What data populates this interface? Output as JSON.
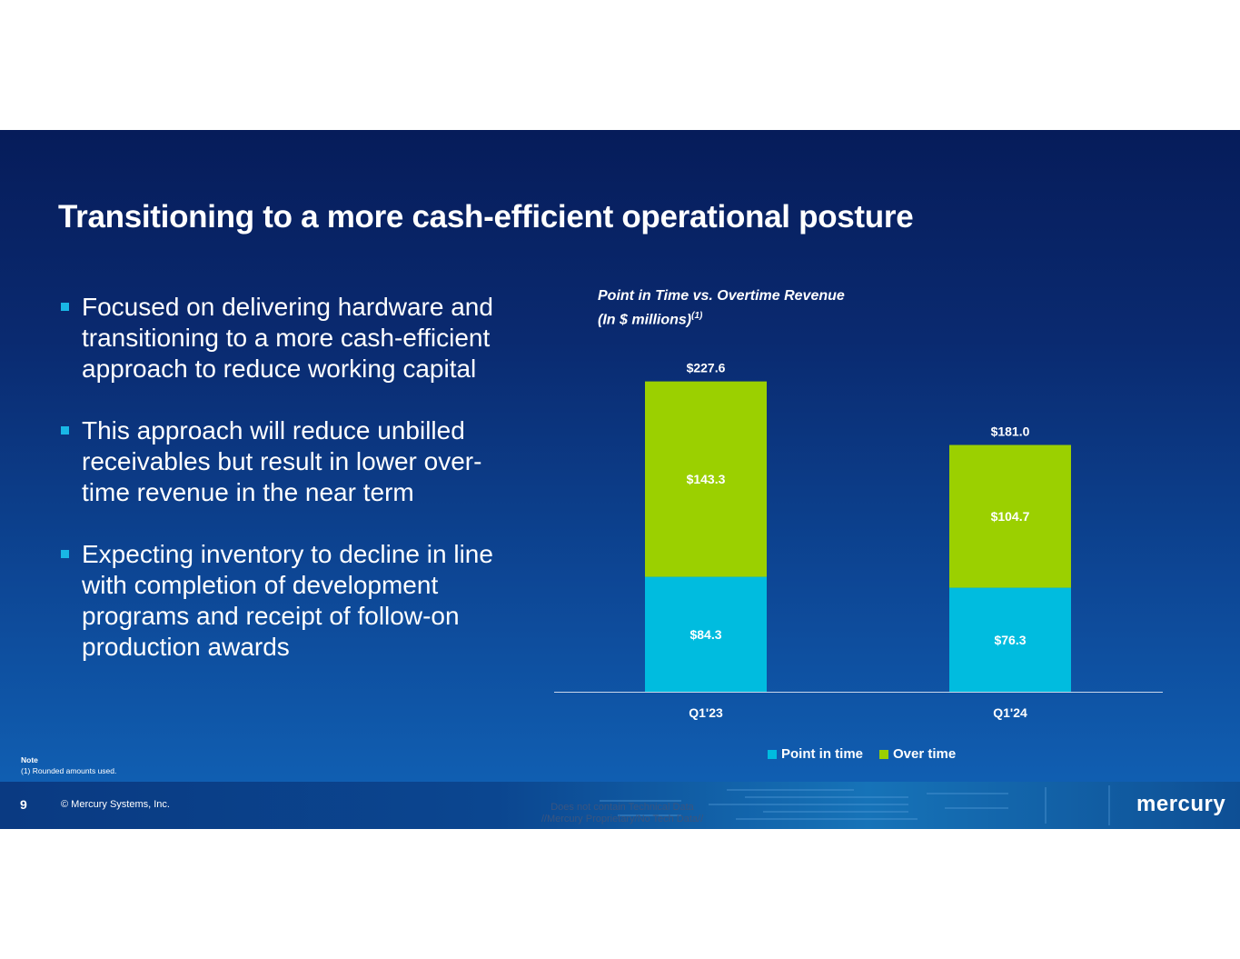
{
  "slide": {
    "title": "Transitioning to a more cash-efficient operational posture",
    "bullets": [
      "Focused on delivering hardware and transitioning to a more cash-efficient approach to reduce working capital",
      "This approach will reduce unbilled receivables but result in lower over-time revenue in the near term",
      "Expecting inventory to decline in line with completion of development programs and receipt of follow-on production awards"
    ]
  },
  "chart_data": {
    "type": "bar",
    "stacked": true,
    "title": "Point in Time vs. Overtime Revenue",
    "subtitle": "(In $ millions)",
    "subtitle_superscript": "(1)",
    "categories": [
      "Q1'23",
      "Q1'24"
    ],
    "series": [
      {
        "name": "Point in time",
        "values": [
          84.3,
          76.3
        ],
        "labels": [
          "$84.3",
          "$76.3"
        ],
        "color": "#00bcdf"
      },
      {
        "name": "Over time",
        "values": [
          143.3,
          104.7
        ],
        "labels": [
          "$143.3",
          "$104.7"
        ],
        "color": "#9bd000"
      }
    ],
    "totals": [
      227.6,
      181.0
    ],
    "total_labels": [
      "$227.6",
      "$181.0"
    ],
    "ylim": [
      0,
      240
    ],
    "grid": false,
    "legend": "bottom"
  },
  "note": {
    "heading": "Note",
    "text": "(1)    Rounded amounts used."
  },
  "footer": {
    "page_number": "9",
    "copyright": "© Mercury Systems, Inc.",
    "disclaimer_line1": "Does not contain Technical Data",
    "disclaimer_line2": "//Mercury Proprietary/No Tech Data//",
    "logo": "mercury"
  },
  "colors": {
    "bullet_marker": "#19b7e6",
    "point_in_time": "#00bcdf",
    "over_time": "#9bd000"
  }
}
